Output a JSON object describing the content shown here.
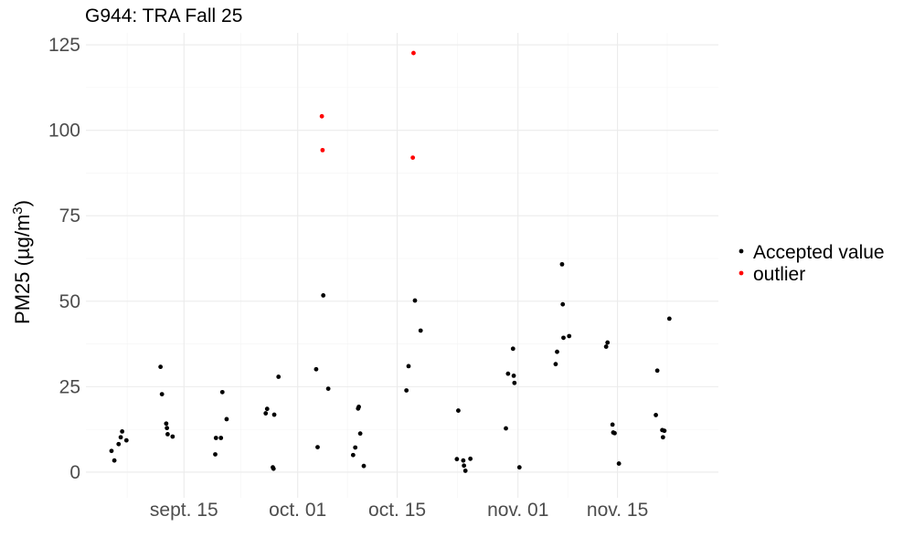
{
  "chart_data": {
    "type": "scatter",
    "title": "G944: TRA Fall 25",
    "xlabel": "",
    "ylabel": {
      "base": "PM25 (",
      "mu": "µg",
      "slash": "/",
      "m": "m",
      "sup": "3",
      "close": ")"
    },
    "x_type": "day-of-year-2025",
    "xlim": [
      244.2,
      333.2
    ],
    "ylim": [
      -7.5,
      128.5
    ],
    "grid": true,
    "legend_position": "right",
    "y_ticks": [
      {
        "value": 0,
        "label": "0"
      },
      {
        "value": 25,
        "label": "25"
      },
      {
        "value": 50,
        "label": "50"
      },
      {
        "value": 75,
        "label": "75"
      },
      {
        "value": 100,
        "label": "100"
      },
      {
        "value": 125,
        "label": "125"
      }
    ],
    "x_ticks": [
      {
        "value": 258,
        "label": "sept. 15"
      },
      {
        "value": 274,
        "label": "oct. 01"
      },
      {
        "value": 288,
        "label": "oct. 15"
      },
      {
        "value": 305,
        "label": "nov. 01"
      },
      {
        "value": 319,
        "label": "nov. 15"
      }
    ],
    "series": [
      {
        "name": "Accepted value",
        "color": "#000000",
        "points": [
          {
            "x": 247.8,
            "y": 6.2
          },
          {
            "x": 248.2,
            "y": 3.4
          },
          {
            "x": 248.8,
            "y": 8.2
          },
          {
            "x": 249.1,
            "y": 10.2
          },
          {
            "x": 249.3,
            "y": 11.9
          },
          {
            "x": 249.9,
            "y": 9.3
          },
          {
            "x": 254.7,
            "y": 30.8
          },
          {
            "x": 254.9,
            "y": 22.8
          },
          {
            "x": 255.5,
            "y": 14.2
          },
          {
            "x": 255.6,
            "y": 12.9
          },
          {
            "x": 255.7,
            "y": 11.1
          },
          {
            "x": 256.4,
            "y": 10.4
          },
          {
            "x": 262.4,
            "y": 5.2
          },
          {
            "x": 262.5,
            "y": 10.0
          },
          {
            "x": 263.2,
            "y": 10.0
          },
          {
            "x": 263.4,
            "y": 23.4
          },
          {
            "x": 264.0,
            "y": 15.5
          },
          {
            "x": 269.5,
            "y": 17.2
          },
          {
            "x": 269.7,
            "y": 18.5
          },
          {
            "x": 270.5,
            "y": 1.4
          },
          {
            "x": 270.6,
            "y": 1.0
          },
          {
            "x": 270.7,
            "y": 16.8
          },
          {
            "x": 271.3,
            "y": 27.9
          },
          {
            "x": 276.6,
            "y": 30.1
          },
          {
            "x": 276.8,
            "y": 7.3
          },
          {
            "x": 277.6,
            "y": 51.7
          },
          {
            "x": 278.3,
            "y": 24.4
          },
          {
            "x": 281.8,
            "y": 5.0
          },
          {
            "x": 282.1,
            "y": 7.2
          },
          {
            "x": 282.5,
            "y": 18.6
          },
          {
            "x": 282.6,
            "y": 19.1
          },
          {
            "x": 282.8,
            "y": 11.3
          },
          {
            "x": 283.3,
            "y": 1.8
          },
          {
            "x": 289.3,
            "y": 23.9
          },
          {
            "x": 289.6,
            "y": 31.0
          },
          {
            "x": 290.5,
            "y": 50.2
          },
          {
            "x": 291.3,
            "y": 41.4
          },
          {
            "x": 296.4,
            "y": 3.8
          },
          {
            "x": 296.6,
            "y": 18.0
          },
          {
            "x": 297.3,
            "y": 3.4
          },
          {
            "x": 297.4,
            "y": 1.9
          },
          {
            "x": 297.6,
            "y": 0.4
          },
          {
            "x": 298.3,
            "y": 3.9
          },
          {
            "x": 303.3,
            "y": 12.8
          },
          {
            "x": 303.6,
            "y": 28.8
          },
          {
            "x": 304.3,
            "y": 36.1
          },
          {
            "x": 304.4,
            "y": 28.2
          },
          {
            "x": 304.5,
            "y": 26.1
          },
          {
            "x": 305.2,
            "y": 1.4
          },
          {
            "x": 310.3,
            "y": 31.6
          },
          {
            "x": 310.5,
            "y": 35.2
          },
          {
            "x": 311.2,
            "y": 60.8
          },
          {
            "x": 311.3,
            "y": 49.1
          },
          {
            "x": 311.4,
            "y": 39.3
          },
          {
            "x": 312.2,
            "y": 39.8
          },
          {
            "x": 317.4,
            "y": 36.7
          },
          {
            "x": 317.6,
            "y": 37.9
          },
          {
            "x": 318.3,
            "y": 13.9
          },
          {
            "x": 318.4,
            "y": 11.6
          },
          {
            "x": 318.6,
            "y": 11.4
          },
          {
            "x": 319.2,
            "y": 2.5
          },
          {
            "x": 324.4,
            "y": 16.7
          },
          {
            "x": 324.6,
            "y": 29.7
          },
          {
            "x": 325.3,
            "y": 12.3
          },
          {
            "x": 325.4,
            "y": 10.2
          },
          {
            "x": 325.6,
            "y": 12.1
          },
          {
            "x": 326.3,
            "y": 44.9
          }
        ]
      },
      {
        "name": "outlier",
        "color": "#ff0000",
        "points": [
          {
            "x": 277.4,
            "y": 104.1
          },
          {
            "x": 277.5,
            "y": 94.2
          },
          {
            "x": 290.3,
            "y": 122.6
          },
          {
            "x": 290.2,
            "y": 92.0
          }
        ]
      }
    ]
  }
}
